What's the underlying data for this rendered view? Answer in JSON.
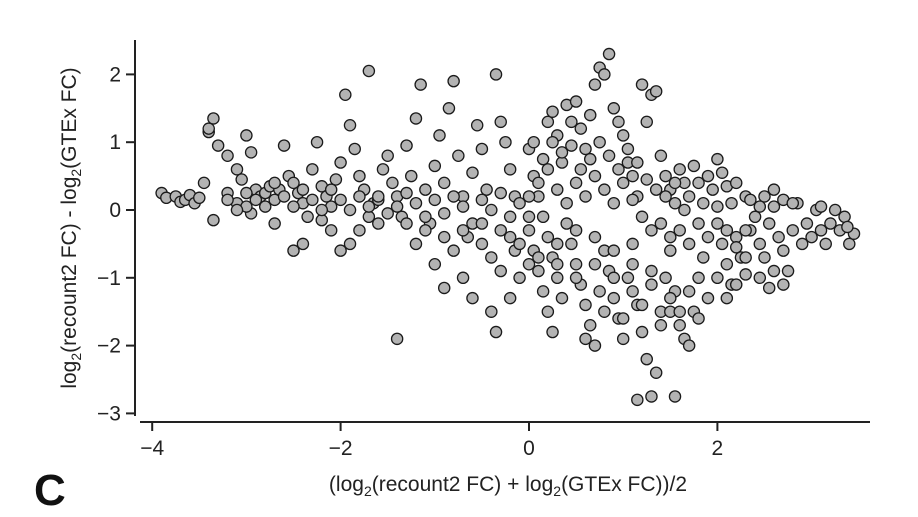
{
  "panel_label": "C",
  "chart_data": {
    "type": "scatter",
    "xlabel": "(log2(recount2 FC) + log2(GTEx FC))/2",
    "ylabel": "log2(recount2 FC) - log2(GTEx FC)",
    "xlim": [
      -4.3,
      3.8
    ],
    "ylim": [
      -3.05,
      2.5
    ],
    "x_ticks": [
      -4,
      -2,
      0,
      2
    ],
    "x_tick_labels": [
      "−4",
      "−2",
      "0",
      "2"
    ],
    "y_ticks": [
      -3,
      -2,
      -1,
      0,
      1,
      2
    ],
    "y_tick_labels": [
      "−3",
      "−2",
      "−1",
      "0",
      "1",
      "2"
    ],
    "grid": false,
    "legend": "none",
    "colors": {
      "marker_fill": "#b3b3b3",
      "marker_edge": "#1a1a1a",
      "axis": "#222222"
    },
    "points": [
      [
        -3.9,
        0.25
      ],
      [
        -3.85,
        0.18
      ],
      [
        -3.75,
        0.2
      ],
      [
        -3.7,
        0.12
      ],
      [
        -3.65,
        0.15
      ],
      [
        -3.6,
        0.22
      ],
      [
        -3.55,
        0.1
      ],
      [
        -3.5,
        0.18
      ],
      [
        -3.45,
        0.4
      ],
      [
        -3.4,
        1.15
      ],
      [
        -3.35,
        1.35
      ],
      [
        -3.4,
        1.2
      ],
      [
        -3.3,
        0.95
      ],
      [
        -3.2,
        0.8
      ],
      [
        -3.1,
        0.6
      ],
      [
        -3.05,
        0.45
      ],
      [
        -3.0,
        1.1
      ],
      [
        -2.95,
        0.85
      ],
      [
        -2.9,
        0.3
      ],
      [
        -2.85,
        0.2
      ],
      [
        -2.8,
        0.25
      ],
      [
        -2.75,
        0.35
      ],
      [
        -2.7,
        0.15
      ],
      [
        -2.65,
        0.3
      ],
      [
        -3.35,
        -0.15
      ],
      [
        -3.1,
        0.1
      ],
      [
        -3.2,
        0.25
      ],
      [
        -2.95,
        -0.05
      ],
      [
        -2.6,
        0.95
      ],
      [
        -2.55,
        0.5
      ],
      [
        -2.5,
        0.4
      ],
      [
        -2.45,
        0.25
      ],
      [
        -2.4,
        0.1
      ],
      [
        -2.35,
        -0.1
      ],
      [
        -2.3,
        0.6
      ],
      [
        -2.25,
        1.0
      ],
      [
        -2.2,
        0.35
      ],
      [
        -2.15,
        0.2
      ],
      [
        -2.4,
        -0.5
      ],
      [
        -2.5,
        -0.6
      ],
      [
        -2.1,
        -0.3
      ],
      [
        -2.05,
        0.45
      ],
      [
        -2.0,
        0.7
      ],
      [
        -1.95,
        1.7
      ],
      [
        -1.9,
        1.25
      ],
      [
        -1.85,
        0.9
      ],
      [
        -1.8,
        0.5
      ],
      [
        -1.75,
        0.3
      ],
      [
        -1.7,
        2.05
      ],
      [
        -1.65,
        0.1
      ],
      [
        -1.6,
        -0.2
      ],
      [
        -1.55,
        0.6
      ],
      [
        -1.5,
        0.8
      ],
      [
        -1.45,
        0.4
      ],
      [
        -1.4,
        0.2
      ],
      [
        -1.35,
        -0.1
      ],
      [
        -1.3,
        0.95
      ],
      [
        -1.25,
        0.5
      ],
      [
        -1.2,
        1.35
      ],
      [
        -1.15,
        1.85
      ],
      [
        -1.1,
        0.3
      ],
      [
        -1.05,
        -0.2
      ],
      [
        -1.0,
        0.65
      ],
      [
        -0.95,
        1.1
      ],
      [
        -0.9,
        0.4
      ],
      [
        -0.85,
        1.5
      ],
      [
        -0.8,
        1.9
      ],
      [
        -0.75,
        0.8
      ],
      [
        -0.7,
        0.2
      ],
      [
        -0.65,
        -0.4
      ],
      [
        -0.6,
        0.55
      ],
      [
        -0.55,
        1.25
      ],
      [
        -0.5,
        0.9
      ],
      [
        -0.45,
        0.3
      ],
      [
        -0.4,
        -0.7
      ],
      [
        -0.35,
        2.0
      ],
      [
        -0.3,
        1.3
      ],
      [
        -0.25,
        1.0
      ],
      [
        -0.2,
        0.6
      ],
      [
        -0.15,
        0.2
      ],
      [
        -1.4,
        -1.9
      ],
      [
        -1.3,
        -0.2
      ],
      [
        -1.2,
        -0.5
      ],
      [
        -1.0,
        -0.8
      ],
      [
        -0.9,
        -1.15
      ],
      [
        -0.8,
        -0.6
      ],
      [
        -0.7,
        -1.0
      ],
      [
        -0.6,
        -1.3
      ],
      [
        -0.5,
        -0.5
      ],
      [
        -0.4,
        -1.5
      ],
      [
        -0.35,
        -1.8
      ],
      [
        -0.3,
        -0.9
      ],
      [
        -0.2,
        -1.3
      ],
      [
        -0.15,
        -0.6
      ],
      [
        -0.1,
        -1.0
      ],
      [
        -1.8,
        -0.3
      ],
      [
        -1.9,
        -0.5
      ],
      [
        -2.0,
        -0.6
      ],
      [
        -1.7,
        -0.1
      ],
      [
        -1.6,
        0.15
      ],
      [
        -2.7,
        -0.2
      ],
      [
        -3.0,
        0.05
      ],
      [
        -2.2,
        -0.15
      ],
      [
        -2.1,
        0.05
      ],
      [
        0.0,
        0.9
      ],
      [
        0.05,
        0.5
      ],
      [
        0.1,
        0.2
      ],
      [
        0.15,
        -0.1
      ],
      [
        0.2,
        -0.4
      ],
      [
        0.25,
        -0.7
      ],
      [
        0.3,
        -1.0
      ],
      [
        0.35,
        -1.3
      ],
      [
        0.0,
        -0.3
      ],
      [
        0.05,
        -0.6
      ],
      [
        0.1,
        -0.9
      ],
      [
        0.15,
        -1.2
      ],
      [
        0.2,
        -1.5
      ],
      [
        0.25,
        -1.8
      ],
      [
        0.0,
        0.2
      ],
      [
        0.05,
        1.0
      ],
      [
        0.2,
        1.3
      ],
      [
        0.25,
        1.45
      ],
      [
        0.3,
        1.1
      ],
      [
        0.35,
        0.7
      ],
      [
        0.4,
        1.55
      ],
      [
        0.45,
        1.3
      ],
      [
        0.5,
        1.6
      ],
      [
        0.55,
        1.2
      ],
      [
        0.6,
        0.9
      ],
      [
        0.65,
        1.4
      ],
      [
        0.7,
        1.85
      ],
      [
        0.75,
        2.1
      ],
      [
        0.8,
        2.0
      ],
      [
        0.85,
        2.3
      ],
      [
        0.9,
        1.5
      ],
      [
        0.95,
        1.3
      ],
      [
        0.4,
        -0.2
      ],
      [
        0.45,
        -0.5
      ],
      [
        0.5,
        -0.8
      ],
      [
        0.55,
        -1.1
      ],
      [
        0.6,
        -1.4
      ],
      [
        0.65,
        -1.7
      ],
      [
        0.7,
        -2.0
      ],
      [
        0.75,
        -1.2
      ],
      [
        0.8,
        -0.6
      ],
      [
        0.85,
        -0.9
      ],
      [
        0.9,
        -1.3
      ],
      [
        0.95,
        -1.6
      ],
      [
        1.0,
        -1.9
      ],
      [
        1.05,
        -1.0
      ],
      [
        1.1,
        -0.5
      ],
      [
        1.15,
        -1.4
      ],
      [
        1.2,
        -1.8
      ],
      [
        1.25,
        -2.2
      ],
      [
        1.3,
        -2.75
      ],
      [
        1.15,
        -2.8
      ],
      [
        1.35,
        -2.4
      ],
      [
        1.55,
        -2.75
      ],
      [
        1.4,
        -1.5
      ],
      [
        1.45,
        -1.0
      ],
      [
        1.5,
        -0.6
      ],
      [
        1.55,
        -1.2
      ],
      [
        1.6,
        -1.7
      ],
      [
        1.65,
        -1.9
      ],
      [
        1.7,
        -2.0
      ],
      [
        1.75,
        -1.5
      ],
      [
        1.8,
        -1.0
      ],
      [
        1.85,
        -0.7
      ],
      [
        1.0,
        1.1
      ],
      [
        1.05,
        0.7
      ],
      [
        1.1,
        0.5
      ],
      [
        1.15,
        0.2
      ],
      [
        1.2,
        1.85
      ],
      [
        1.25,
        1.3
      ],
      [
        1.3,
        1.7
      ],
      [
        1.35,
        1.75
      ],
      [
        1.4,
        0.8
      ],
      [
        1.45,
        0.5
      ],
      [
        1.5,
        0.3
      ],
      [
        1.55,
        0.1
      ],
      [
        1.6,
        0.6
      ],
      [
        1.65,
        0.4
      ],
      [
        1.7,
        0.2
      ],
      [
        1.75,
        0.65
      ],
      [
        1.8,
        0.4
      ],
      [
        1.85,
        0.1
      ],
      [
        1.9,
        0.5
      ],
      [
        1.95,
        0.3
      ],
      [
        2.0,
        0.75
      ],
      [
        2.05,
        0.55
      ],
      [
        2.1,
        0.35
      ],
      [
        2.15,
        0.1
      ],
      [
        2.0,
        -0.2
      ],
      [
        2.05,
        -0.5
      ],
      [
        2.1,
        -0.8
      ],
      [
        2.15,
        -1.1
      ],
      [
        2.2,
        -0.4
      ],
      [
        2.25,
        -0.7
      ],
      [
        2.3,
        -0.95
      ],
      [
        2.35,
        -0.3
      ],
      [
        2.4,
        -0.1
      ],
      [
        2.45,
        -0.5
      ],
      [
        2.5,
        -0.7
      ],
      [
        2.55,
        -0.2
      ],
      [
        2.6,
        0.05
      ],
      [
        2.65,
        -0.4
      ],
      [
        2.7,
        -0.6
      ],
      [
        2.75,
        -0.9
      ],
      [
        2.8,
        -0.3
      ],
      [
        2.85,
        0.1
      ],
      [
        2.9,
        -0.5
      ],
      [
        2.95,
        -0.2
      ],
      [
        3.0,
        -0.4
      ],
      [
        3.05,
        0.0
      ],
      [
        3.1,
        -0.3
      ],
      [
        3.15,
        -0.5
      ],
      [
        3.2,
        -0.2
      ],
      [
        3.25,
        0.0
      ],
      [
        3.3,
        -0.3
      ],
      [
        3.35,
        -0.1
      ],
      [
        3.4,
        -0.5
      ],
      [
        3.45,
        -0.35
      ],
      [
        3.38,
        -0.25
      ],
      [
        3.1,
        0.05
      ],
      [
        2.5,
        0.2
      ],
      [
        2.6,
        0.3
      ],
      [
        2.7,
        0.15
      ],
      [
        2.8,
        0.1
      ],
      [
        2.3,
        0.2
      ],
      [
        2.2,
        0.4
      ],
      [
        2.35,
        0.15
      ],
      [
        2.45,
        0.05
      ],
      [
        0.0,
        -0.1
      ],
      [
        0.1,
        0.4
      ],
      [
        0.2,
        0.6
      ],
      [
        0.3,
        0.3
      ],
      [
        0.4,
        0.1
      ],
      [
        0.5,
        0.4
      ],
      [
        0.6,
        0.2
      ],
      [
        0.7,
        0.5
      ],
      [
        0.8,
        0.3
      ],
      [
        0.9,
        0.1
      ],
      [
        1.0,
        0.4
      ],
      [
        1.1,
        0.15
      ],
      [
        1.2,
        -0.1
      ],
      [
        1.3,
        -0.3
      ],
      [
        1.4,
        -0.2
      ],
      [
        1.5,
        -0.4
      ],
      [
        1.6,
        -0.3
      ],
      [
        1.7,
        -0.5
      ],
      [
        1.8,
        -0.2
      ],
      [
        1.9,
        -0.4
      ],
      [
        2.0,
        0.05
      ],
      [
        2.1,
        -0.3
      ],
      [
        2.2,
        -0.55
      ],
      [
        2.3,
        -0.3
      ],
      [
        0.3,
        -0.5
      ],
      [
        0.5,
        -0.3
      ],
      [
        0.7,
        -0.4
      ],
      [
        0.9,
        -0.6
      ],
      [
        1.1,
        -0.8
      ],
      [
        1.3,
        -0.9
      ],
      [
        1.5,
        -1.3
      ],
      [
        1.7,
        -1.2
      ],
      [
        0.1,
        -0.7
      ],
      [
        0.3,
        -0.8
      ],
      [
        0.5,
        -1.0
      ],
      [
        0.7,
        -0.8
      ],
      [
        0.9,
        -1.0
      ],
      [
        1.1,
        -1.2
      ],
      [
        1.3,
        -1.1
      ],
      [
        1.5,
        -1.5
      ],
      [
        -0.1,
        0.1
      ],
      [
        -0.2,
        -0.1
      ],
      [
        -0.3,
        0.25
      ],
      [
        -0.4,
        0.0
      ],
      [
        -0.5,
        0.15
      ],
      [
        -0.6,
        -0.2
      ],
      [
        -0.7,
        0.05
      ],
      [
        -0.8,
        0.2
      ],
      [
        -0.9,
        -0.05
      ],
      [
        -1.0,
        0.15
      ],
      [
        -1.1,
        -0.1
      ],
      [
        -1.2,
        0.1
      ],
      [
        -1.3,
        0.25
      ],
      [
        -1.4,
        0.05
      ],
      [
        -1.5,
        -0.05
      ],
      [
        -1.6,
        0.2
      ],
      [
        -1.7,
        0.05
      ],
      [
        -1.8,
        0.2
      ],
      [
        -1.9,
        0.0
      ],
      [
        -2.0,
        0.15
      ],
      [
        -2.1,
        0.3
      ],
      [
        -2.2,
        0.0
      ],
      [
        -2.3,
        0.15
      ],
      [
        -2.4,
        0.3
      ],
      [
        -2.5,
        0.05
      ],
      [
        -2.6,
        0.2
      ],
      [
        -2.7,
        0.4
      ],
      [
        -2.8,
        0.05
      ],
      [
        -2.9,
        0.15
      ],
      [
        -3.0,
        0.25
      ],
      [
        -3.1,
        0.0
      ],
      [
        -3.2,
        0.15
      ],
      [
        -0.2,
        -0.4
      ],
      [
        -0.3,
        -0.3
      ],
      [
        -0.5,
        -0.2
      ],
      [
        -0.7,
        -0.3
      ],
      [
        -0.9,
        -0.4
      ],
      [
        -1.1,
        -0.3
      ],
      [
        -0.1,
        -0.5
      ],
      [
        0.0,
        -0.8
      ],
      [
        0.15,
        0.75
      ],
      [
        0.25,
        1.0
      ],
      [
        0.35,
        0.85
      ],
      [
        0.45,
        0.95
      ],
      [
        0.55,
        0.6
      ],
      [
        0.65,
        0.75
      ],
      [
        0.75,
        1.0
      ],
      [
        0.85,
        0.8
      ],
      [
        0.95,
        0.6
      ],
      [
        1.05,
        0.9
      ],
      [
        1.15,
        0.7
      ],
      [
        1.25,
        0.45
      ],
      [
        1.35,
        0.3
      ],
      [
        1.45,
        0.2
      ],
      [
        1.55,
        0.4
      ],
      [
        1.65,
        0.0
      ],
      [
        0.6,
        -1.9
      ],
      [
        0.8,
        -1.5
      ],
      [
        1.0,
        -1.6
      ],
      [
        1.2,
        -1.4
      ],
      [
        1.4,
        -1.7
      ],
      [
        1.6,
        -1.5
      ],
      [
        1.8,
        -1.6
      ],
      [
        1.9,
        -1.3
      ],
      [
        2.0,
        -1.0
      ],
      [
        2.1,
        -1.3
      ],
      [
        2.2,
        -1.1
      ],
      [
        2.3,
        -0.7
      ],
      [
        2.45,
        -1.0
      ],
      [
        2.6,
        -0.9
      ],
      [
        2.7,
        -1.1
      ],
      [
        2.55,
        -1.15
      ]
    ]
  }
}
